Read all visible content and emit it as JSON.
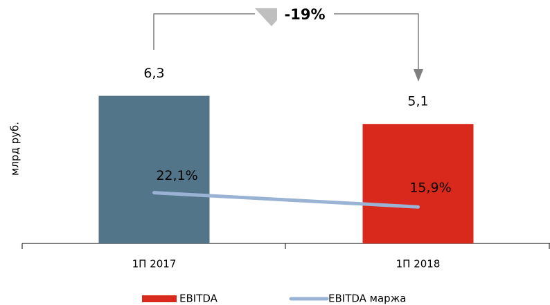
{
  "chart_data": {
    "type": "bar",
    "y_axis_label": "млрд руб.",
    "annotation": "-19%",
    "categories": [
      "1П 2017",
      "1П 2018"
    ],
    "series": [
      {
        "name": "EBITDA",
        "type": "bar",
        "color": "#d9291c",
        "colors": [
          "#527589",
          "#d9291c"
        ],
        "values": [
          6.3,
          5.1
        ],
        "value_labels": [
          "6,3",
          "5,1"
        ]
      },
      {
        "name": "EBITDA маржа",
        "type": "line",
        "axis": "y2",
        "color": "#9ab3d5",
        "values": [
          22.1,
          15.9
        ],
        "value_labels": [
          "22,1%",
          "15,9%"
        ]
      }
    ],
    "ylim": [
      0,
      9.8
    ],
    "y2lim": [
      0,
      100
    ]
  }
}
